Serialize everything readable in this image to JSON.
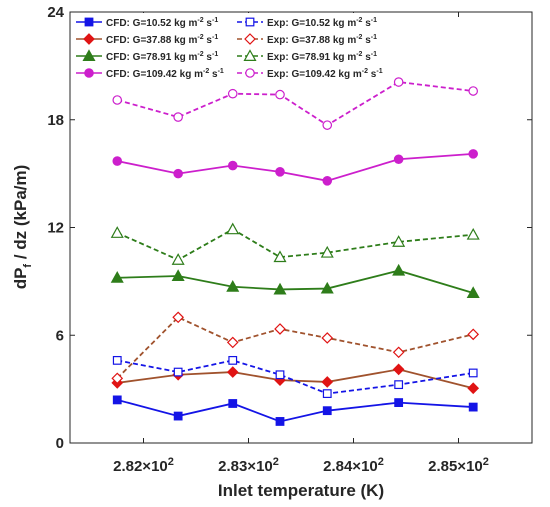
{
  "chart_data": {
    "type": "line",
    "xlabel": "Inlet temperature (K)",
    "ylabel": "dP_f / dz (kPa/m)",
    "xlim": [
      281.3,
      285.7
    ],
    "ylim": [
      0,
      24
    ],
    "x_ticks": [
      {
        "value": 282,
        "mant": "2.82",
        "exp": "2"
      },
      {
        "value": 283,
        "mant": "2.83",
        "exp": "2"
      },
      {
        "value": 284,
        "mant": "2.84",
        "exp": "2"
      },
      {
        "value": 285,
        "mant": "2.85",
        "exp": "2"
      }
    ],
    "y_ticks": [
      0,
      6,
      12,
      18,
      24
    ],
    "x": [
      281.75,
      282.33,
      282.85,
      283.3,
      283.75,
      284.43,
      285.14
    ],
    "series": [
      {
        "legend": {
          "prefix": "CFD: G=10.52 kg m",
          "mid": " s",
          "sup": "-2",
          "sup2": "-1"
        },
        "color": "#1414e6",
        "dash": "solid",
        "marker": "square-filled",
        "values": [
          2.4,
          1.5,
          2.2,
          1.2,
          1.8,
          2.25,
          2.0
        ]
      },
      {
        "legend": {
          "prefix": "CFD: G=37.88 kg m",
          "mid": " s",
          "sup": "-2",
          "sup2": "-1"
        },
        "color": "#e01414",
        "line_color": "#a0522d",
        "dash": "solid",
        "marker": "diamond-filled",
        "values": [
          3.35,
          3.8,
          3.95,
          3.5,
          3.4,
          4.1,
          3.05
        ]
      },
      {
        "legend": {
          "prefix": "CFD: G=78.91 kg m",
          "mid": " s",
          "sup": "-2",
          "sup2": "-1"
        },
        "color": "#2e7d1a",
        "dash": "solid",
        "marker": "triangle-filled",
        "values": [
          9.2,
          9.3,
          8.7,
          8.55,
          8.6,
          9.6,
          8.35
        ]
      },
      {
        "legend": {
          "prefix": "CFD: G=109.42 kg m",
          "mid": " s",
          "sup": "-2",
          "sup2": "-1"
        },
        "color": "#cc1fcc",
        "dash": "solid",
        "marker": "circle-filled",
        "values": [
          15.7,
          15.0,
          15.45,
          15.1,
          14.6,
          15.8,
          16.1
        ]
      },
      {
        "legend": {
          "prefix": "Exp: G=10.52 kg m",
          "mid": " s",
          "sup": "-2",
          "sup2": "-1"
        },
        "color": "#1414e6",
        "dash": "dashed",
        "marker": "square-open",
        "values": [
          4.6,
          3.95,
          4.6,
          3.8,
          2.75,
          3.25,
          3.9
        ]
      },
      {
        "legend": {
          "prefix": "Exp: G=37.88 kg m",
          "mid": " s",
          "sup": "-2",
          "sup2": "-1"
        },
        "color": "#e01414",
        "line_color": "#a0522d",
        "dash": "dashed",
        "marker": "diamond-open",
        "values": [
          3.6,
          7.0,
          5.6,
          6.35,
          5.85,
          5.05,
          6.05
        ]
      },
      {
        "legend": {
          "prefix": "Exp: G=78.91 kg m",
          "mid": " s",
          "sup": "-2",
          "sup2": "-1"
        },
        "color": "#2e7d1a",
        "dash": "dashed",
        "marker": "triangle-open",
        "values": [
          11.7,
          10.2,
          11.9,
          10.35,
          10.6,
          11.2,
          11.6
        ]
      },
      {
        "legend": {
          "prefix": "Exp: G=109.42 kg m",
          "mid": " s",
          "sup": "-2",
          "sup2": "-1"
        },
        "color": "#cc1fcc",
        "dash": "dashed",
        "marker": "circle-open",
        "values": [
          19.1,
          18.15,
          19.45,
          19.4,
          17.7,
          20.1,
          19.6
        ]
      }
    ],
    "legend_placement": "top-left",
    "grid": false
  }
}
